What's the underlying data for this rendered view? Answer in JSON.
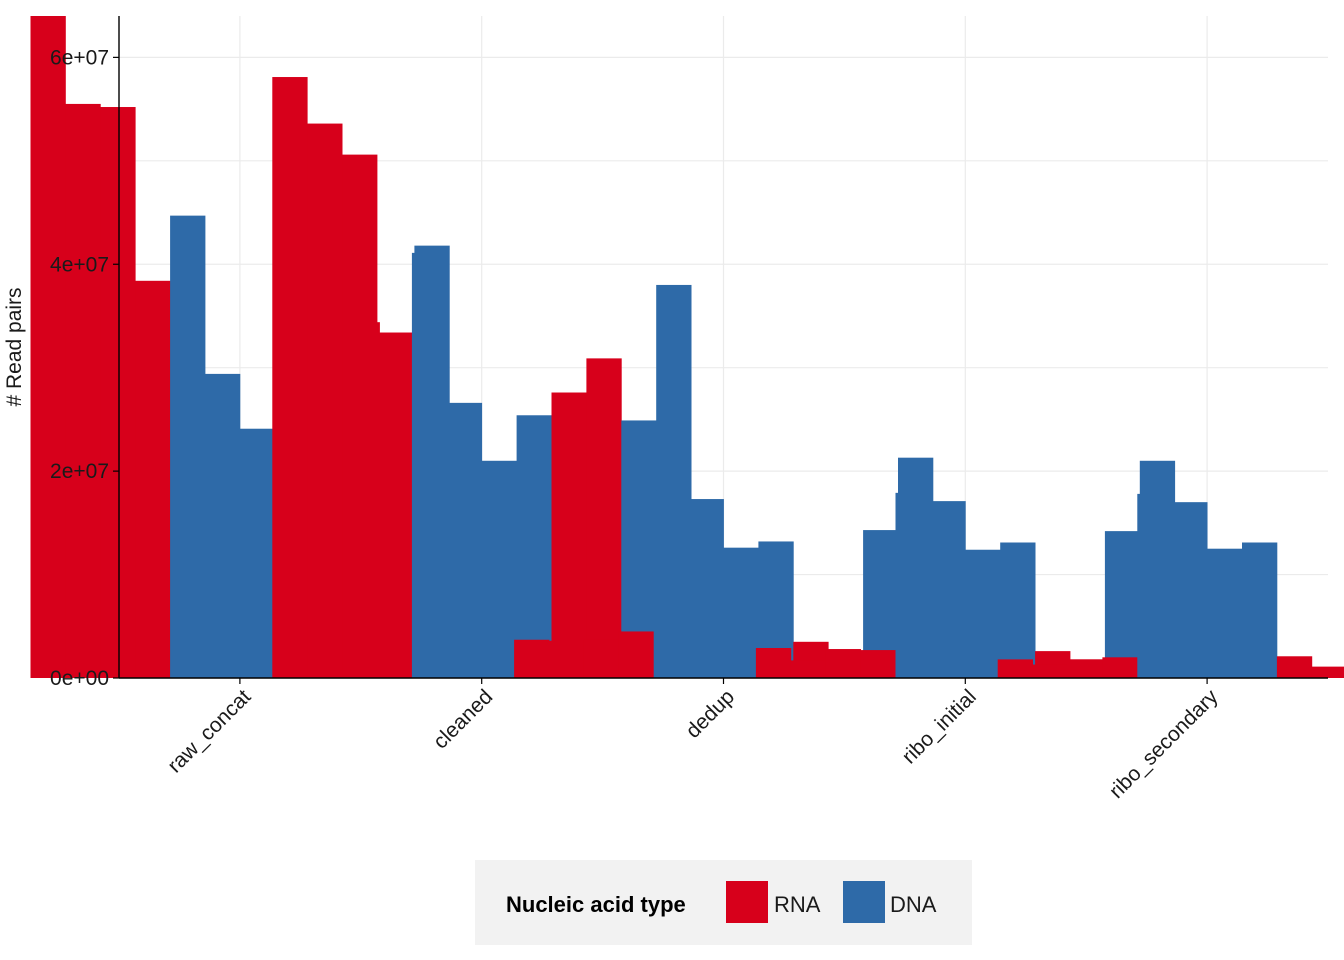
{
  "chart_data": {
    "type": "bar",
    "title": "",
    "xlabel": "",
    "ylabel": "# Read pairs",
    "ylim": [
      0,
      64000000
    ],
    "y_ticks": [
      0,
      20000000,
      40000000,
      60000000
    ],
    "y_tick_labels": [
      "0e+00",
      "2e+07",
      "4e+07",
      "6e+07"
    ],
    "grid": true,
    "legend": {
      "title": "Nucleic acid type",
      "position": "bottom",
      "entries": [
        {
          "label": "RNA",
          "color": "#d7001b"
        },
        {
          "label": "DNA",
          "color": "#2e6aa8"
        }
      ]
    },
    "series_types": [
      "RNA",
      "RNA",
      "RNA",
      "RNA",
      "DNA",
      "DNA",
      "DNA",
      "DNA",
      "RNA",
      "RNA",
      "DNA",
      "DNA"
    ],
    "categories": [
      "raw_concat",
      "cleaned",
      "dedup",
      "ribo_initial",
      "ribo_secondary"
    ],
    "values": [
      [
        64000000,
        55500000,
        55200000,
        38400000,
        44700000,
        29400000,
        24100000,
        27900000,
        28900000,
        34400000,
        28400000,
        41800000
      ],
      [
        58100000,
        53600000,
        50600000,
        33400000,
        41100000,
        26600000,
        21000000,
        25400000,
        27600000,
        30900000,
        24900000,
        38000000
      ],
      [
        3700000,
        3600000,
        3700000,
        4500000,
        18100000,
        17300000,
        12600000,
        13200000,
        3500000,
        2500000,
        14300000,
        21300000
      ],
      [
        2900000,
        1700000,
        2800000,
        2700000,
        17900000,
        17100000,
        12400000,
        13100000,
        2600000,
        1800000,
        14200000,
        21000000
      ],
      [
        1800000,
        1300000,
        1800000,
        2000000,
        17800000,
        17000000,
        12500000,
        13100000,
        2100000,
        1100000,
        14100000,
        21000000
      ]
    ]
  }
}
